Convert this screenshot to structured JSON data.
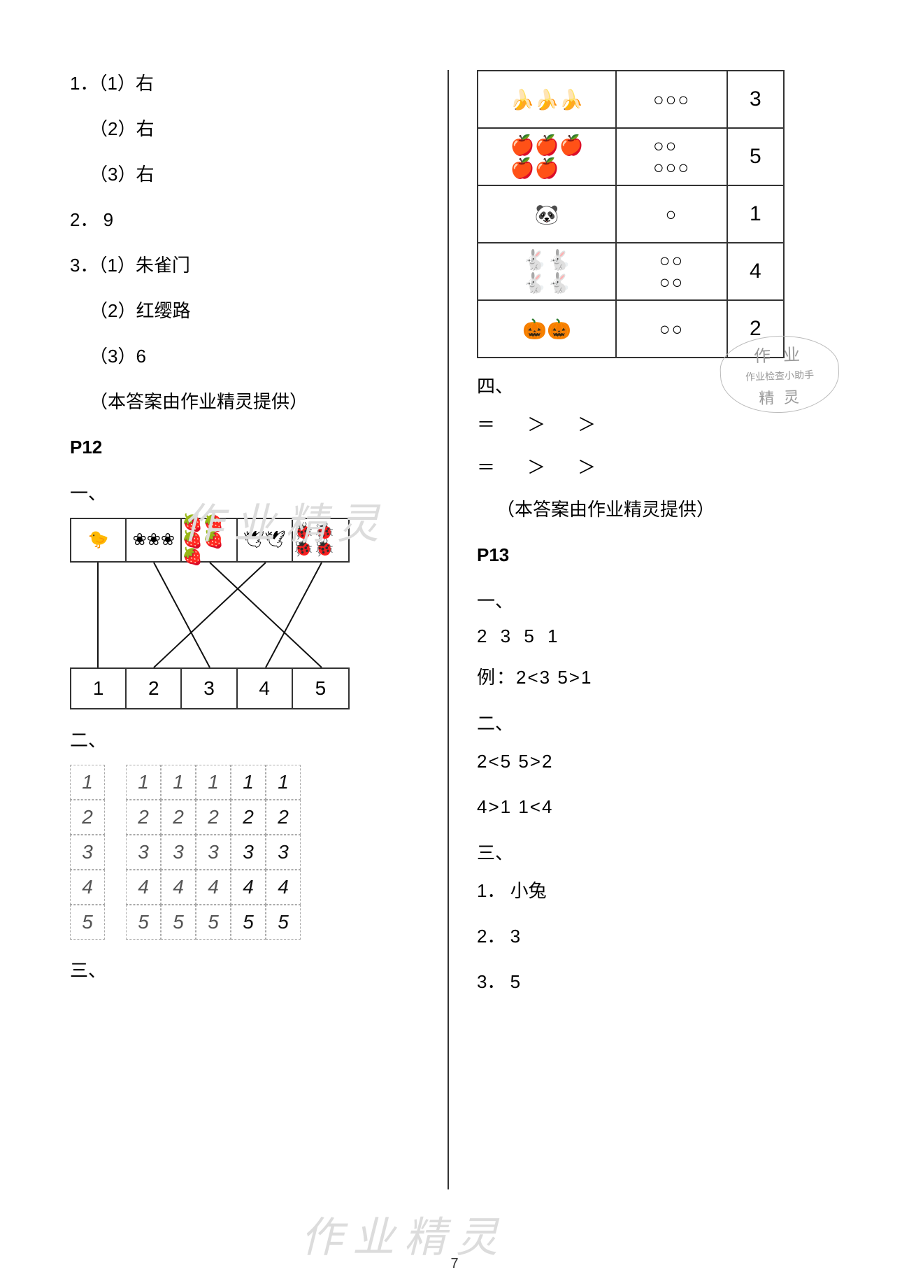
{
  "left": {
    "q1": {
      "stem": "1．（1）右",
      "sub2": "（2）右",
      "sub3": "（3）右"
    },
    "q2": "2． 9",
    "q3": {
      "stem": "3．（1）朱雀门",
      "sub2": "（2）红缨路",
      "sub3": "（3）6"
    },
    "credit": "（本答案由作业精灵提供）",
    "p12": "P12",
    "sec1": "一、",
    "match_top_icons": [
      "🐤",
      "❀❀❀",
      "🍓🍓🍓🍓🍓",
      "🕊🕊",
      "🐞🐞🐞🐞"
    ],
    "match_bottom": [
      "1",
      "2",
      "3",
      "4",
      "5"
    ],
    "sec2": "二、",
    "writing_rows": [
      "1",
      "2",
      "3",
      "4",
      "5"
    ],
    "writing_cols": 5,
    "sec3": "三、"
  },
  "right": {
    "count_rows": [
      {
        "icon": "🍌🍌🍌",
        "circles": "○○○",
        "n": "3"
      },
      {
        "icon": "🍎🍎🍎\n🍎🍎",
        "circles": "○○\n○○○",
        "n": "5"
      },
      {
        "icon": "🐼",
        "circles": "○",
        "n": "1"
      },
      {
        "icon": "🐇🐇\n🐇🐇",
        "circles": "○○\n○○",
        "n": "4"
      },
      {
        "icon": "🎃🎃",
        "circles": "○○",
        "n": "2"
      }
    ],
    "sec4": "四、",
    "row4a": "＝　＞　＞",
    "row4b": "＝　＞　＞",
    "credit": "（本答案由作业精灵提供）",
    "p13": "P13",
    "sec1": "一、",
    "p13_1a": "2  3  5  1",
    "p13_1b": "例：2<3  5>1",
    "sec2": "二、",
    "p13_2a": "2<5  5>2",
    "p13_2b": "4>1  1<4",
    "sec3": "三、",
    "p13_3_1": "1． 小兔",
    "p13_3_2": "2． 3",
    "p13_3_3": "3． 5"
  },
  "stamp": {
    "top": "作 业",
    "mid": "作业检查小助手",
    "bot": "精 灵"
  },
  "watermark": "作业精灵",
  "page_number": "7"
}
